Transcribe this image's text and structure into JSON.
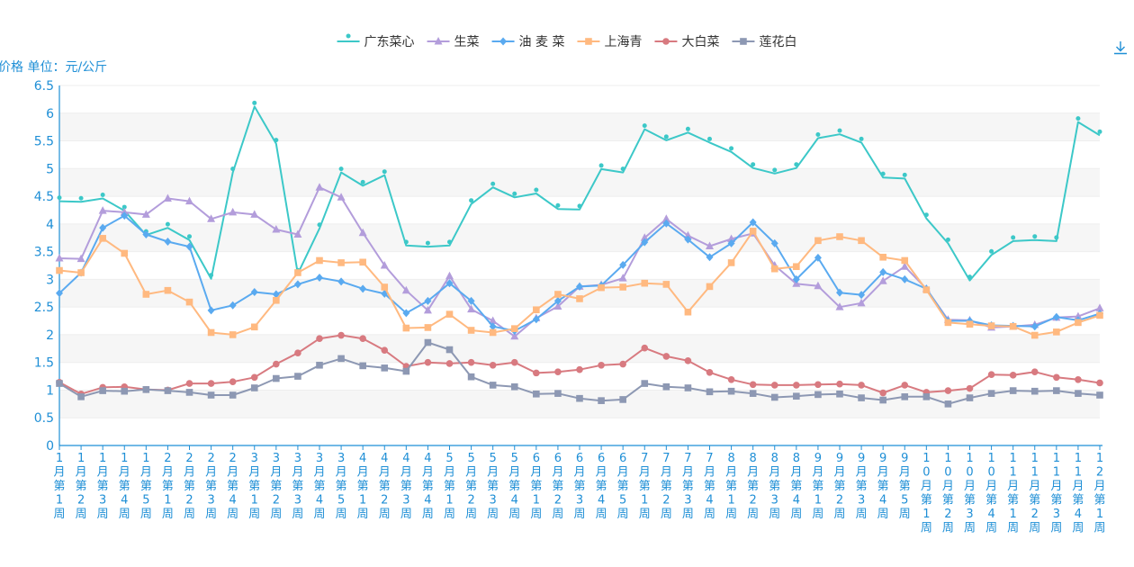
{
  "chart_data": {
    "type": "line",
    "title": "",
    "ylabel": "价格 单位：元/公斤",
    "xlabel": "",
    "ylim": [
      0,
      6.5
    ],
    "yticks": [
      "0",
      "0.5",
      "1",
      "1.5",
      "2",
      "2.5",
      "3",
      "3.5",
      "4",
      "4.5",
      "5",
      "5.5",
      "6",
      "6.5"
    ],
    "grid": "horizontal",
    "legend_position": "top-center",
    "categories": [
      "1月第1周",
      "1月第2周",
      "1月第3周",
      "1月第4周",
      "1月第5周",
      "2月第1周",
      "2月第2周",
      "2月第3周",
      "2月第4周",
      "3月第1周",
      "3月第2周",
      "3月第3周",
      "3月第4周",
      "3月第5周",
      "4月第1周",
      "4月第2周",
      "4月第3周",
      "4月第4周",
      "5月第1周",
      "5月第2周",
      "5月第3周",
      "5月第4周",
      "6月第1周",
      "6月第2周",
      "6月第3周",
      "6月第4周",
      "6月第5周",
      "7月第1周",
      "7月第2周",
      "7月第3周",
      "7月第4周",
      "8月第1周",
      "8月第2周",
      "8月第3周",
      "8月第4周",
      "9月第1周",
      "9月第2周",
      "9月第3周",
      "9月第4周",
      "9月第5周",
      "10月第1周",
      "10月第2周",
      "10月第3周",
      "10月第4周",
      "11月第1周",
      "11月第2周",
      "11月第3周",
      "11月第4周",
      "12月第1周"
    ],
    "series": [
      {
        "name": "广东菜心",
        "color": "#3cc8c8",
        "marker": "circle-small",
        "values": [
          4.41,
          4.4,
          4.46,
          4.24,
          3.8,
          3.93,
          3.71,
          3.01,
          4.93,
          6.12,
          5.45,
          3.1,
          3.92,
          4.93,
          4.69,
          4.88,
          3.61,
          3.59,
          3.61,
          4.36,
          4.66,
          4.48,
          4.55,
          4.27,
          4.26,
          4.99,
          4.93,
          5.71,
          5.51,
          5.65,
          5.47,
          5.3,
          5.01,
          4.91,
          5.01,
          5.55,
          5.62,
          5.47,
          4.84,
          4.82,
          4.1,
          3.65,
          2.98,
          3.44,
          3.69,
          3.71,
          3.69,
          5.84,
          5.6
        ]
      },
      {
        "name": "生菜",
        "color": "#b39ddb",
        "marker": "triangle",
        "values": [
          3.38,
          3.37,
          4.24,
          4.21,
          4.17,
          4.46,
          4.41,
          4.09,
          4.21,
          4.17,
          3.9,
          3.81,
          4.66,
          4.48,
          3.84,
          3.25,
          2.8,
          2.44,
          3.06,
          2.46,
          2.25,
          1.97,
          2.3,
          2.51,
          2.87,
          2.9,
          3.02,
          3.75,
          4.09,
          3.79,
          3.6,
          3.73,
          3.83,
          3.25,
          2.92,
          2.88,
          2.5,
          2.57,
          2.97,
          3.23,
          2.83,
          2.27,
          2.26,
          2.13,
          2.15,
          2.18,
          2.31,
          2.33,
          2.48
        ]
      },
      {
        "name": "油 麦 菜",
        "color": "#5aaaf0",
        "marker": "diamond",
        "values": [
          2.75,
          3.12,
          3.93,
          4.15,
          3.81,
          3.68,
          3.59,
          2.44,
          2.53,
          2.77,
          2.73,
          2.91,
          3.03,
          2.96,
          2.83,
          2.74,
          2.39,
          2.61,
          2.93,
          2.61,
          2.15,
          2.07,
          2.28,
          2.61,
          2.87,
          2.89,
          3.26,
          3.67,
          4.01,
          3.72,
          3.4,
          3.65,
          4.03,
          3.65,
          3.0,
          3.39,
          2.76,
          2.72,
          3.13,
          3.0,
          2.83,
          2.25,
          2.25,
          2.17,
          2.16,
          2.15,
          2.32,
          2.26,
          2.38
        ]
      },
      {
        "name": "上海青",
        "color": "#ffb980",
        "marker": "square",
        "values": [
          3.16,
          3.12,
          3.74,
          3.47,
          2.73,
          2.8,
          2.59,
          2.04,
          2.0,
          2.14,
          2.62,
          3.12,
          3.34,
          3.3,
          3.31,
          2.86,
          2.12,
          2.13,
          2.37,
          2.08,
          2.04,
          2.11,
          2.45,
          2.73,
          2.65,
          2.85,
          2.86,
          2.93,
          2.91,
          2.41,
          2.87,
          3.3,
          3.87,
          3.19,
          3.23,
          3.7,
          3.77,
          3.7,
          3.4,
          3.34,
          2.81,
          2.22,
          2.19,
          2.16,
          2.15,
          1.99,
          2.05,
          2.22,
          2.35
        ]
      },
      {
        "name": "大白菜",
        "color": "#d87a80",
        "marker": "circle",
        "values": [
          1.14,
          0.93,
          1.05,
          1.06,
          1.01,
          1.0,
          1.12,
          1.12,
          1.15,
          1.23,
          1.47,
          1.67,
          1.93,
          1.99,
          1.93,
          1.72,
          1.43,
          1.5,
          1.48,
          1.5,
          1.45,
          1.5,
          1.31,
          1.33,
          1.37,
          1.45,
          1.47,
          1.76,
          1.61,
          1.53,
          1.32,
          1.19,
          1.1,
          1.09,
          1.09,
          1.1,
          1.11,
          1.09,
          0.95,
          1.09,
          0.96,
          0.99,
          1.03,
          1.28,
          1.27,
          1.33,
          1.23,
          1.19,
          1.13
        ]
      },
      {
        "name": "莲花白",
        "color": "#8d98b3",
        "marker": "square",
        "values": [
          1.12,
          0.88,
          0.99,
          0.98,
          1.01,
          0.99,
          0.96,
          0.91,
          0.91,
          1.04,
          1.21,
          1.25,
          1.45,
          1.57,
          1.44,
          1.4,
          1.34,
          1.86,
          1.73,
          1.24,
          1.09,
          1.06,
          0.93,
          0.94,
          0.85,
          0.81,
          0.83,
          1.12,
          1.06,
          1.04,
          0.97,
          0.98,
          0.94,
          0.87,
          0.89,
          0.92,
          0.93,
          0.86,
          0.82,
          0.88,
          0.88,
          0.75,
          0.86,
          0.94,
          0.99,
          0.98,
          0.99,
          0.94,
          0.91
        ]
      }
    ]
  },
  "toolbar": {
    "download_icon": "download-icon"
  }
}
